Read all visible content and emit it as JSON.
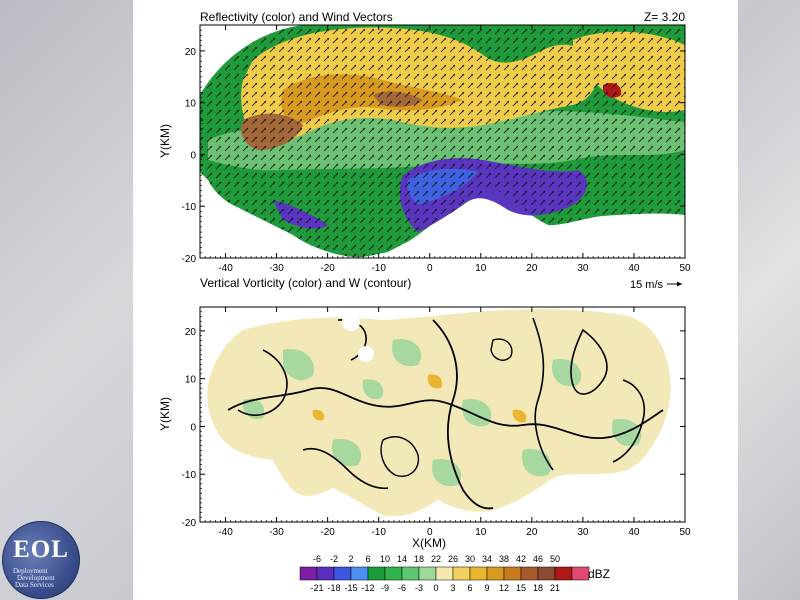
{
  "logo": {
    "text": "EOL",
    "line1": "Deployment",
    "line2": "Development",
    "line3": "Data Services"
  },
  "chart_data": [
    {
      "type": "heatmap",
      "title": "Reflectivity (color) and Wind Vectors",
      "z_label": "Z=  3.20",
      "xlabel": "",
      "ylabel": "Y(KM)",
      "xlim": [
        -45,
        50
      ],
      "ylim": [
        -20,
        25
      ],
      "x_ticks": [
        -40,
        -30,
        -20,
        -10,
        0,
        10,
        20,
        30,
        40,
        50
      ],
      "y_ticks": [
        -20,
        -10,
        0,
        10,
        20
      ],
      "vector_reference": "15 m/s"
    },
    {
      "type": "heatmap",
      "title": "Vertical Vorticity (color) and W (contour)",
      "xlabel": "X(KM)",
      "ylabel": "Y(KM)",
      "xlim": [
        -45,
        50
      ],
      "ylim": [
        -20,
        25
      ],
      "x_ticks": [
        -40,
        -30,
        -20,
        -10,
        0,
        10,
        20,
        30,
        40,
        50
      ],
      "y_ticks": [
        -20,
        -10,
        0,
        10,
        20
      ]
    }
  ],
  "colorbar": {
    "unit": "dBZ",
    "top_labels": [
      "-6",
      "-2",
      "2",
      "6",
      "10",
      "14",
      "18",
      "22",
      "26",
      "30",
      "34",
      "38",
      "42",
      "46",
      "50"
    ],
    "bottom_labels": [
      "-21",
      "-18",
      "-15",
      "-12",
      "-9",
      "-6",
      "-3",
      "0",
      "3",
      "6",
      "9",
      "12",
      "15",
      "18",
      "21"
    ],
    "colors": [
      "#7a1fa2",
      "#5a2fc0",
      "#3f56e0",
      "#4b8ff0",
      "#1a9c3a",
      "#2fb34a",
      "#5cc870",
      "#9ed99a",
      "#f3e9b0",
      "#f2d060",
      "#eab530",
      "#d99a20",
      "#c97a1f",
      "#a85a2a",
      "#8c4a32",
      "#b01818",
      "#e04a70"
    ]
  }
}
